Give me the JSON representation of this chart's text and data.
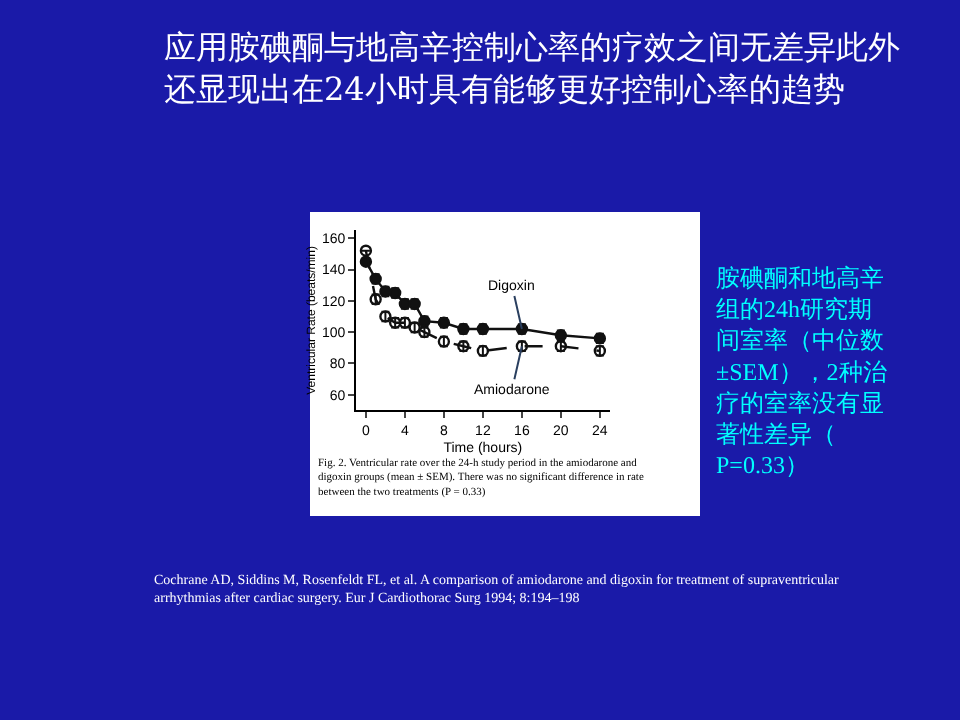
{
  "chart_data": {
    "type": "line",
    "title": "应用胺碘酮与地高辛控制心率的疗效之间无差异此外还显现出在24小时具有能够更好控制心率的趋势",
    "xlabel": "Time (hours)",
    "ylabel": "Ventricular Rate (beats/min)",
    "x": [
      0,
      1,
      2,
      3,
      4,
      5,
      6,
      8,
      10,
      12,
      16,
      20,
      24
    ],
    "xlim": [
      -1,
      25
    ],
    "xticks": [
      0,
      4,
      8,
      12,
      16,
      20,
      24
    ],
    "ylim": [
      50,
      165
    ],
    "yticks": [
      60,
      80,
      100,
      120,
      140,
      160
    ],
    "series": [
      {
        "name": "Digoxin",
        "color": "#111111",
        "marker": "circle",
        "line_style": "solid",
        "values": [
          145,
          134,
          126,
          125,
          118,
          118,
          107,
          106,
          102,
          102,
          102,
          98,
          96
        ],
        "errors": [
          null,
          3,
          3,
          3,
          3,
          3,
          3,
          3,
          3,
          3,
          3,
          3,
          3
        ]
      },
      {
        "name": "Amiodarone",
        "color": "#111111",
        "marker": "circle-open",
        "line_style": "dashed",
        "values": [
          152,
          121,
          110,
          106,
          106,
          103,
          100,
          94,
          91,
          88,
          91,
          91,
          88
        ],
        "errors": [
          null,
          3,
          3,
          3,
          3,
          3,
          3,
          3,
          3,
          3,
          3,
          3,
          3
        ]
      }
    ],
    "legend": false,
    "annotations": [
      "Fig. 2. Ventricular rate over the 24-h study period in the amiodarone and digoxin groups (mean ± SEM). There was no significant difference in rate between the two treatments (P = 0.33)",
      "胺碘酮和地高辛组的24h研究期间室率（中位数±SEM），2种治疗的室率没有显著性差异（P=0.33）",
      "Cochrane AD, Siddins M, Rosenfeldt FL, et al. A comparison of amiodarone and digoxin for treatment of supraventricular arrhythmias after cardiac surgery. Eur J Cardiothorac Surg 1994; 8:194–198"
    ]
  }
}
